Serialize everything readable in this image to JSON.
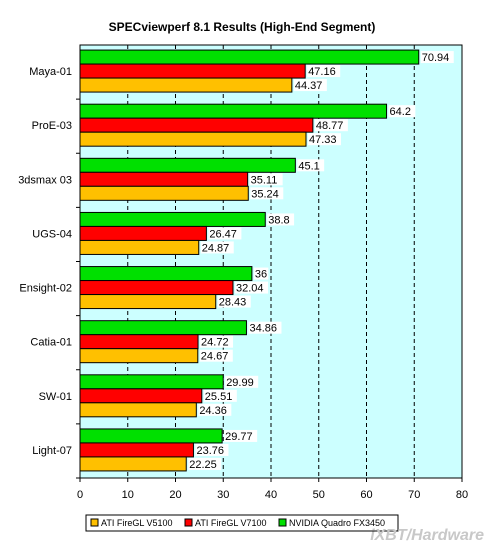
{
  "chart_data": {
    "type": "bar",
    "orientation": "horizontal",
    "title": "SPECviewperf 8.1 Results (High-End Segment)",
    "categories": [
      "Maya-01",
      "ProE-03",
      "3dsmax 03",
      "UGS-04",
      "Ensight-02",
      "Catia-01",
      "SW-01",
      "Light-07"
    ],
    "series": [
      {
        "name": "NVIDIA Quadro FX3450",
        "color": "#00e000",
        "values": [
          70.94,
          64.2,
          45.1,
          38.8,
          36,
          34.86,
          29.99,
          29.77
        ]
      },
      {
        "name": "ATI FireGL V7100",
        "color": "#ff0000",
        "values": [
          47.16,
          48.77,
          35.11,
          26.47,
          32.04,
          24.72,
          25.51,
          23.76
        ]
      },
      {
        "name": "ATI FireGL V5100",
        "color": "#ffc000",
        "values": [
          44.37,
          47.33,
          35.24,
          24.87,
          28.43,
          24.67,
          24.36,
          22.25
        ]
      }
    ],
    "value_labels": [
      [
        "70.94",
        "64.2",
        "45.1",
        "38.8",
        "36",
        "34.86",
        "29.99",
        "29.77"
      ],
      [
        "47.16",
        "48.77",
        "35.11",
        "26.47",
        "32.04",
        "24.72",
        "25.51",
        "23.76"
      ],
      [
        "44.37",
        "47.33",
        "35.24",
        "24.87",
        "28.43",
        "24.67",
        "24.36",
        "22.25"
      ]
    ],
    "xlim": [
      0,
      80
    ],
    "xticks": [
      "0",
      "10",
      "20",
      "30",
      "40",
      "50",
      "60",
      "70",
      "80"
    ],
    "grid": "vertical dashed",
    "plot_background": "#ccffff",
    "legend_placement": "bottom",
    "legend": [
      "ATI FireGL V5100",
      "ATI FireGL V7100",
      "NVIDIA Quadro FX3450"
    ]
  },
  "watermark": "iXBT/Hardware"
}
